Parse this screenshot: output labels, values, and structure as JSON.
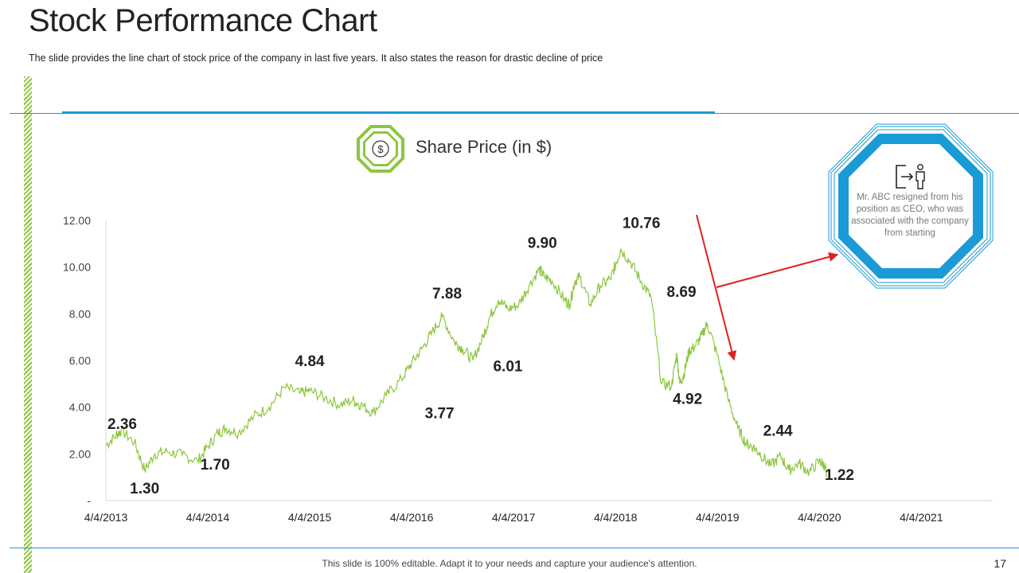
{
  "page": {
    "title": "Stock Performance Chart",
    "subtitle": "The slide provides the line chart of stock price of the company in last five years. It also states the reason for drastic decline of price",
    "footer": "This slide is 100% editable. Adapt it to your needs and capture your audience's attention.",
    "page_number": "17"
  },
  "badge": {
    "icon": "dollar-icon",
    "symbol": "$"
  },
  "callout": {
    "icon": "person-exit-icon",
    "text": "Mr. ABC resigned from his position as CEO, who was associated with the company from starting"
  },
  "colors": {
    "line": "#8dc63f",
    "accent": "#1a9ad6",
    "arrow": "#e02020",
    "badge": "#8dc63f"
  },
  "chart_data": {
    "type": "line",
    "title": "Share Price (in $)",
    "xlabel": "",
    "ylabel": "",
    "y_ticks": [
      "-",
      "2.00",
      "4.00",
      "6.00",
      "8.00",
      "10.00",
      "12.00"
    ],
    "ylim": [
      0,
      12
    ],
    "x_ticks": [
      "4/4/2013",
      "4/4/2014",
      "4/4/2015",
      "4/4/2016",
      "4/4/2017",
      "4/4/2018",
      "4/4/2019",
      "4/4/2020",
      "4/4/2021"
    ],
    "xlim": [
      2013.0,
      2021.7
    ],
    "series": [
      {
        "name": "Share Price",
        "x": [
          2013.0,
          2013.1,
          2013.15,
          2013.28,
          2013.38,
          2013.48,
          2013.6,
          2013.75,
          2013.9,
          2014.0,
          2014.1,
          2014.18,
          2014.3,
          2014.45,
          2014.6,
          2014.75,
          2014.9,
          2015.0,
          2015.15,
          2015.3,
          2015.42,
          2015.5,
          2015.62,
          2015.75,
          2015.9,
          2016.0,
          2016.1,
          2016.2,
          2016.3,
          2016.42,
          2016.5,
          2016.6,
          2016.7,
          2016.76,
          2016.85,
          2016.95,
          2017.05,
          2017.15,
          2017.25,
          2017.3,
          2017.38,
          2017.5,
          2017.55,
          2017.6,
          2017.65,
          2017.75,
          2017.85,
          2017.95,
          2018.0,
          2018.05,
          2018.15,
          2018.25,
          2018.35,
          2018.45,
          2018.55,
          2018.6,
          2018.63,
          2018.67,
          2018.72,
          2018.78,
          2018.85,
          2018.9,
          2019.0,
          2019.1,
          2019.2,
          2019.28,
          2019.35,
          2019.42,
          2019.52,
          2019.62,
          2019.7,
          2019.8,
          2019.9,
          2020.0,
          2020.05,
          2020.07
        ],
        "values": [
          2.36,
          2.8,
          3.0,
          2.5,
          1.3,
          2.0,
          2.1,
          1.95,
          1.7,
          2.3,
          2.9,
          3.1,
          2.9,
          3.6,
          4.0,
          4.84,
          4.6,
          4.7,
          4.4,
          4.1,
          4.3,
          4.1,
          3.77,
          4.5,
          5.2,
          5.9,
          6.5,
          7.2,
          7.88,
          6.8,
          6.5,
          6.01,
          7.0,
          7.8,
          8.6,
          8.2,
          8.4,
          9.2,
          9.9,
          9.6,
          9.4,
          8.6,
          8.4,
          9.4,
          9.6,
          8.4,
          9.2,
          9.5,
          10.1,
          10.76,
          10.2,
          9.4,
          8.69,
          5.0,
          4.92,
          6.3,
          5.0,
          5.4,
          6.4,
          6.6,
          7.1,
          7.6,
          6.2,
          4.4,
          3.1,
          2.44,
          2.3,
          2.0,
          1.5,
          1.9,
          1.3,
          1.6,
          1.22,
          1.7,
          1.5,
          1.1
        ]
      }
    ],
    "data_labels": [
      {
        "text": "2.36",
        "x": 2013.0,
        "y": 2.36
      },
      {
        "text": "1.30",
        "x": 2013.38,
        "y": 1.3
      },
      {
        "text": "1.70",
        "x": 2013.9,
        "y": 1.7
      },
      {
        "text": "4.84",
        "x": 2015.0,
        "y": 4.84
      },
      {
        "text": "3.77",
        "x": 2016.0,
        "y": 3.77
      },
      {
        "text": "7.88",
        "x": 2016.3,
        "y": 7.88
      },
      {
        "text": "6.01",
        "x": 2016.6,
        "y": 6.01
      },
      {
        "text": "9.90",
        "x": 2017.25,
        "y": 9.9
      },
      {
        "text": "10.76",
        "x": 2018.05,
        "y": 10.76
      },
      {
        "text": "8.69",
        "x": 2018.35,
        "y": 8.69
      },
      {
        "text": "4.92",
        "x": 2018.55,
        "y": 4.92
      },
      {
        "text": "2.44",
        "x": 2019.28,
        "y": 2.44
      },
      {
        "text": "1.22",
        "x": 2019.9,
        "y": 1.22
      }
    ]
  }
}
